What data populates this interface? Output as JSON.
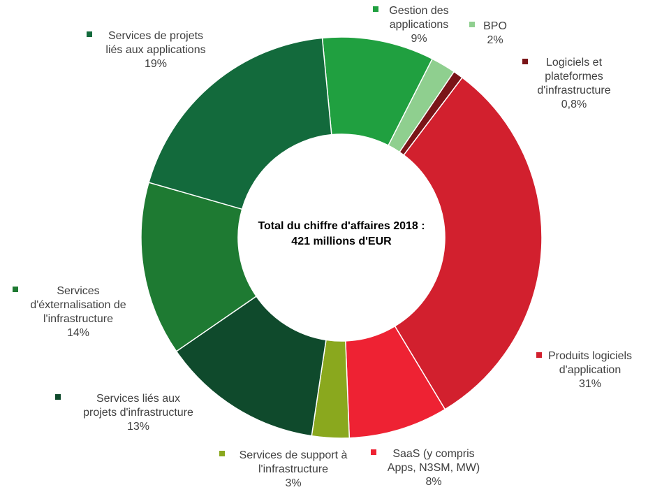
{
  "chart_data": {
    "type": "pie",
    "donut": true,
    "center_text": [
      "Total du chiffre d'affaires 2018 :",
      "421 millions d'EUR"
    ],
    "categories": [
      "Gestion des applications",
      "BPO",
      "Logiciels et plateformes d'infrastructure",
      "Produits logiciels d'application",
      "SaaS (y compris Apps, N3SM, MW)",
      "Services de support à l'infrastructure",
      "Services liés aux projets d'infrastructure",
      "Services d'éxternalisation de l'infrastructure",
      "Services de projets liés aux applications"
    ],
    "values": [
      9,
      2,
      0.8,
      31,
      8,
      3,
      13,
      14,
      19
    ],
    "value_labels": [
      "9%",
      "2%",
      "0,8%",
      "31%",
      "8%",
      "3%",
      "13%",
      "14%",
      "19%"
    ],
    "colors": [
      "#20a040",
      "#8fcf8f",
      "#7a1418",
      "#d2202e",
      "#ee2233",
      "#8aa81e",
      "#0f4a2c",
      "#1e7a32",
      "#136a3c"
    ],
    "label_lines": [
      [
        "Gestion des",
        "applications"
      ],
      [
        "BPO"
      ],
      [
        "Logiciels et",
        "plateformes",
        "d'infrastructure"
      ],
      [
        "Produits logiciels",
        "d'application"
      ],
      [
        "SaaS (y compris",
        "Apps, N3SM, MW)"
      ],
      [
        "Services de support à",
        "l'infrastructure"
      ],
      [
        "Services liés aux",
        "projets d'infrastructure"
      ],
      [
        "Services",
        "d'éxternalisation de",
        "l'infrastructure"
      ],
      [
        "Services de projets",
        "liés aux applications"
      ]
    ],
    "legend": "labels placed next to each slice"
  }
}
